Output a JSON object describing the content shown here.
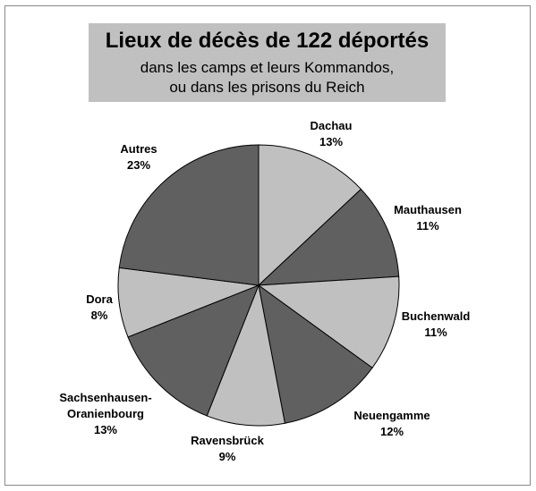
{
  "chart_data": {
    "type": "pie",
    "title": "Lieux de décès de 122 déportés",
    "subtitle_line1": "dans les camps et leurs Kommandos,",
    "subtitle_line2": "ou dans les prisons du Reich",
    "slices": [
      {
        "label": "Dachau",
        "label_line2": "",
        "pct_text": "13%",
        "value": 13,
        "color": "#c0c0c0"
      },
      {
        "label": "Mauthausen",
        "label_line2": "",
        "pct_text": "11%",
        "value": 11,
        "color": "#606060"
      },
      {
        "label": "Buchenwald",
        "label_line2": "",
        "pct_text": "11%",
        "value": 11,
        "color": "#c0c0c0"
      },
      {
        "label": "Neuengamme",
        "label_line2": "",
        "pct_text": "12%",
        "value": 12,
        "color": "#606060"
      },
      {
        "label": "Ravensbrück",
        "label_line2": "",
        "pct_text": "9%",
        "value": 9,
        "color": "#c0c0c0"
      },
      {
        "label": "Sachsenhausen-",
        "label_line2": "Oranienbourg",
        "pct_text": "13%",
        "value": 13,
        "color": "#606060"
      },
      {
        "label": "Dora",
        "label_line2": "",
        "pct_text": "8%",
        "value": 8,
        "color": "#c0c0c0"
      },
      {
        "label": "Autres",
        "label_line2": "",
        "pct_text": "23%",
        "value": 23,
        "color": "#606060"
      }
    ],
    "start_angle": "12 o'clock",
    "direction": "clockwise",
    "legend": "none (labels outside slices)"
  }
}
